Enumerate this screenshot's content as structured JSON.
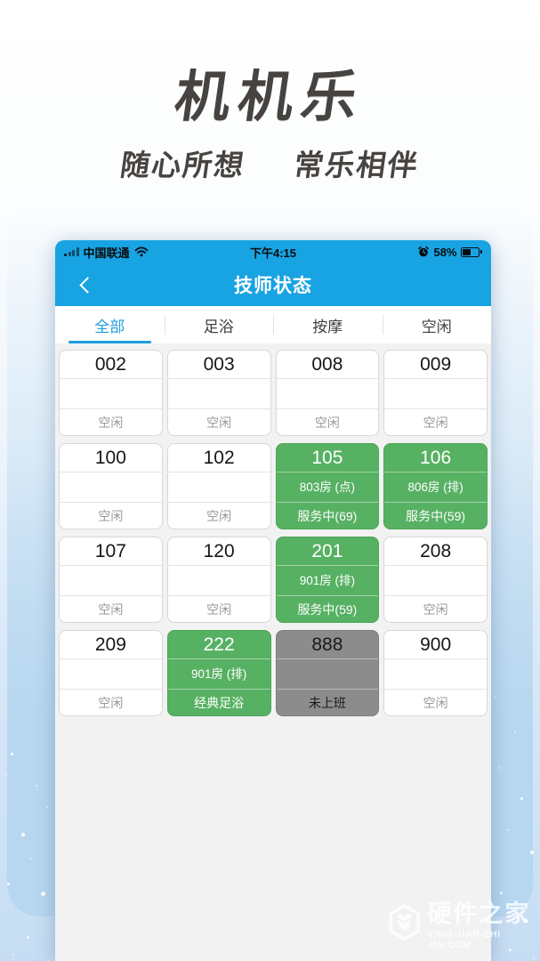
{
  "branding": {
    "logo": "机机乐",
    "tagline_left": "随心所想",
    "tagline_right": "常乐相伴"
  },
  "status_bar": {
    "carrier": "中国联通",
    "time": "下午4:15",
    "battery_percent": "58%",
    "icons": [
      "cellular-signal-icon",
      "wifi-icon",
      "alarm-clock-icon",
      "battery-icon"
    ]
  },
  "header": {
    "title": "技师状态",
    "back_icon": "back-chevron-icon"
  },
  "tabs": [
    {
      "label": "全部",
      "active": true
    },
    {
      "label": "足浴",
      "active": false
    },
    {
      "label": "按摩",
      "active": false
    },
    {
      "label": "空闲",
      "active": false
    }
  ],
  "cards": [
    {
      "number": "002",
      "room": "",
      "status": "空闲",
      "state": "idle"
    },
    {
      "number": "003",
      "room": "",
      "status": "空闲",
      "state": "idle"
    },
    {
      "number": "008",
      "room": "",
      "status": "空闲",
      "state": "idle"
    },
    {
      "number": "009",
      "room": "",
      "status": "空闲",
      "state": "idle"
    },
    {
      "number": "100",
      "room": "",
      "status": "空闲",
      "state": "idle"
    },
    {
      "number": "102",
      "room": "",
      "status": "空闲",
      "state": "idle"
    },
    {
      "number": "105",
      "room": "803房 (点)",
      "status": "服务中(69)",
      "state": "busy"
    },
    {
      "number": "106",
      "room": "806房 (排)",
      "status": "服务中(59)",
      "state": "busy"
    },
    {
      "number": "107",
      "room": "",
      "status": "空闲",
      "state": "idle"
    },
    {
      "number": "120",
      "room": "",
      "status": "空闲",
      "state": "idle"
    },
    {
      "number": "201",
      "room": "901房 (排)",
      "status": "服务中(59)",
      "state": "busy"
    },
    {
      "number": "208",
      "room": "",
      "status": "空闲",
      "state": "idle"
    },
    {
      "number": "209",
      "room": "",
      "status": "空闲",
      "state": "idle"
    },
    {
      "number": "222",
      "room": "901房 (排)",
      "status": "经典足浴",
      "state": "busy"
    },
    {
      "number": "888",
      "room": "",
      "status": "未上班",
      "state": "off"
    },
    {
      "number": "900",
      "room": "",
      "status": "空闲",
      "state": "idle"
    }
  ],
  "watermark": {
    "site_name": "硬件之家",
    "site_url": "YING JIAN ZHI JIA.COM",
    "logo_icon": "hexagon-fox-icon"
  },
  "colors": {
    "header_blue": "#18a3e3",
    "tab_active_blue": "#1f9de0",
    "busy_green": "#57b163",
    "offline_gray": "#8c8c8c",
    "idle_text_gray": "#9a9a9a",
    "logo_text": "#474340",
    "background_blue": "#b7d7f0"
  }
}
